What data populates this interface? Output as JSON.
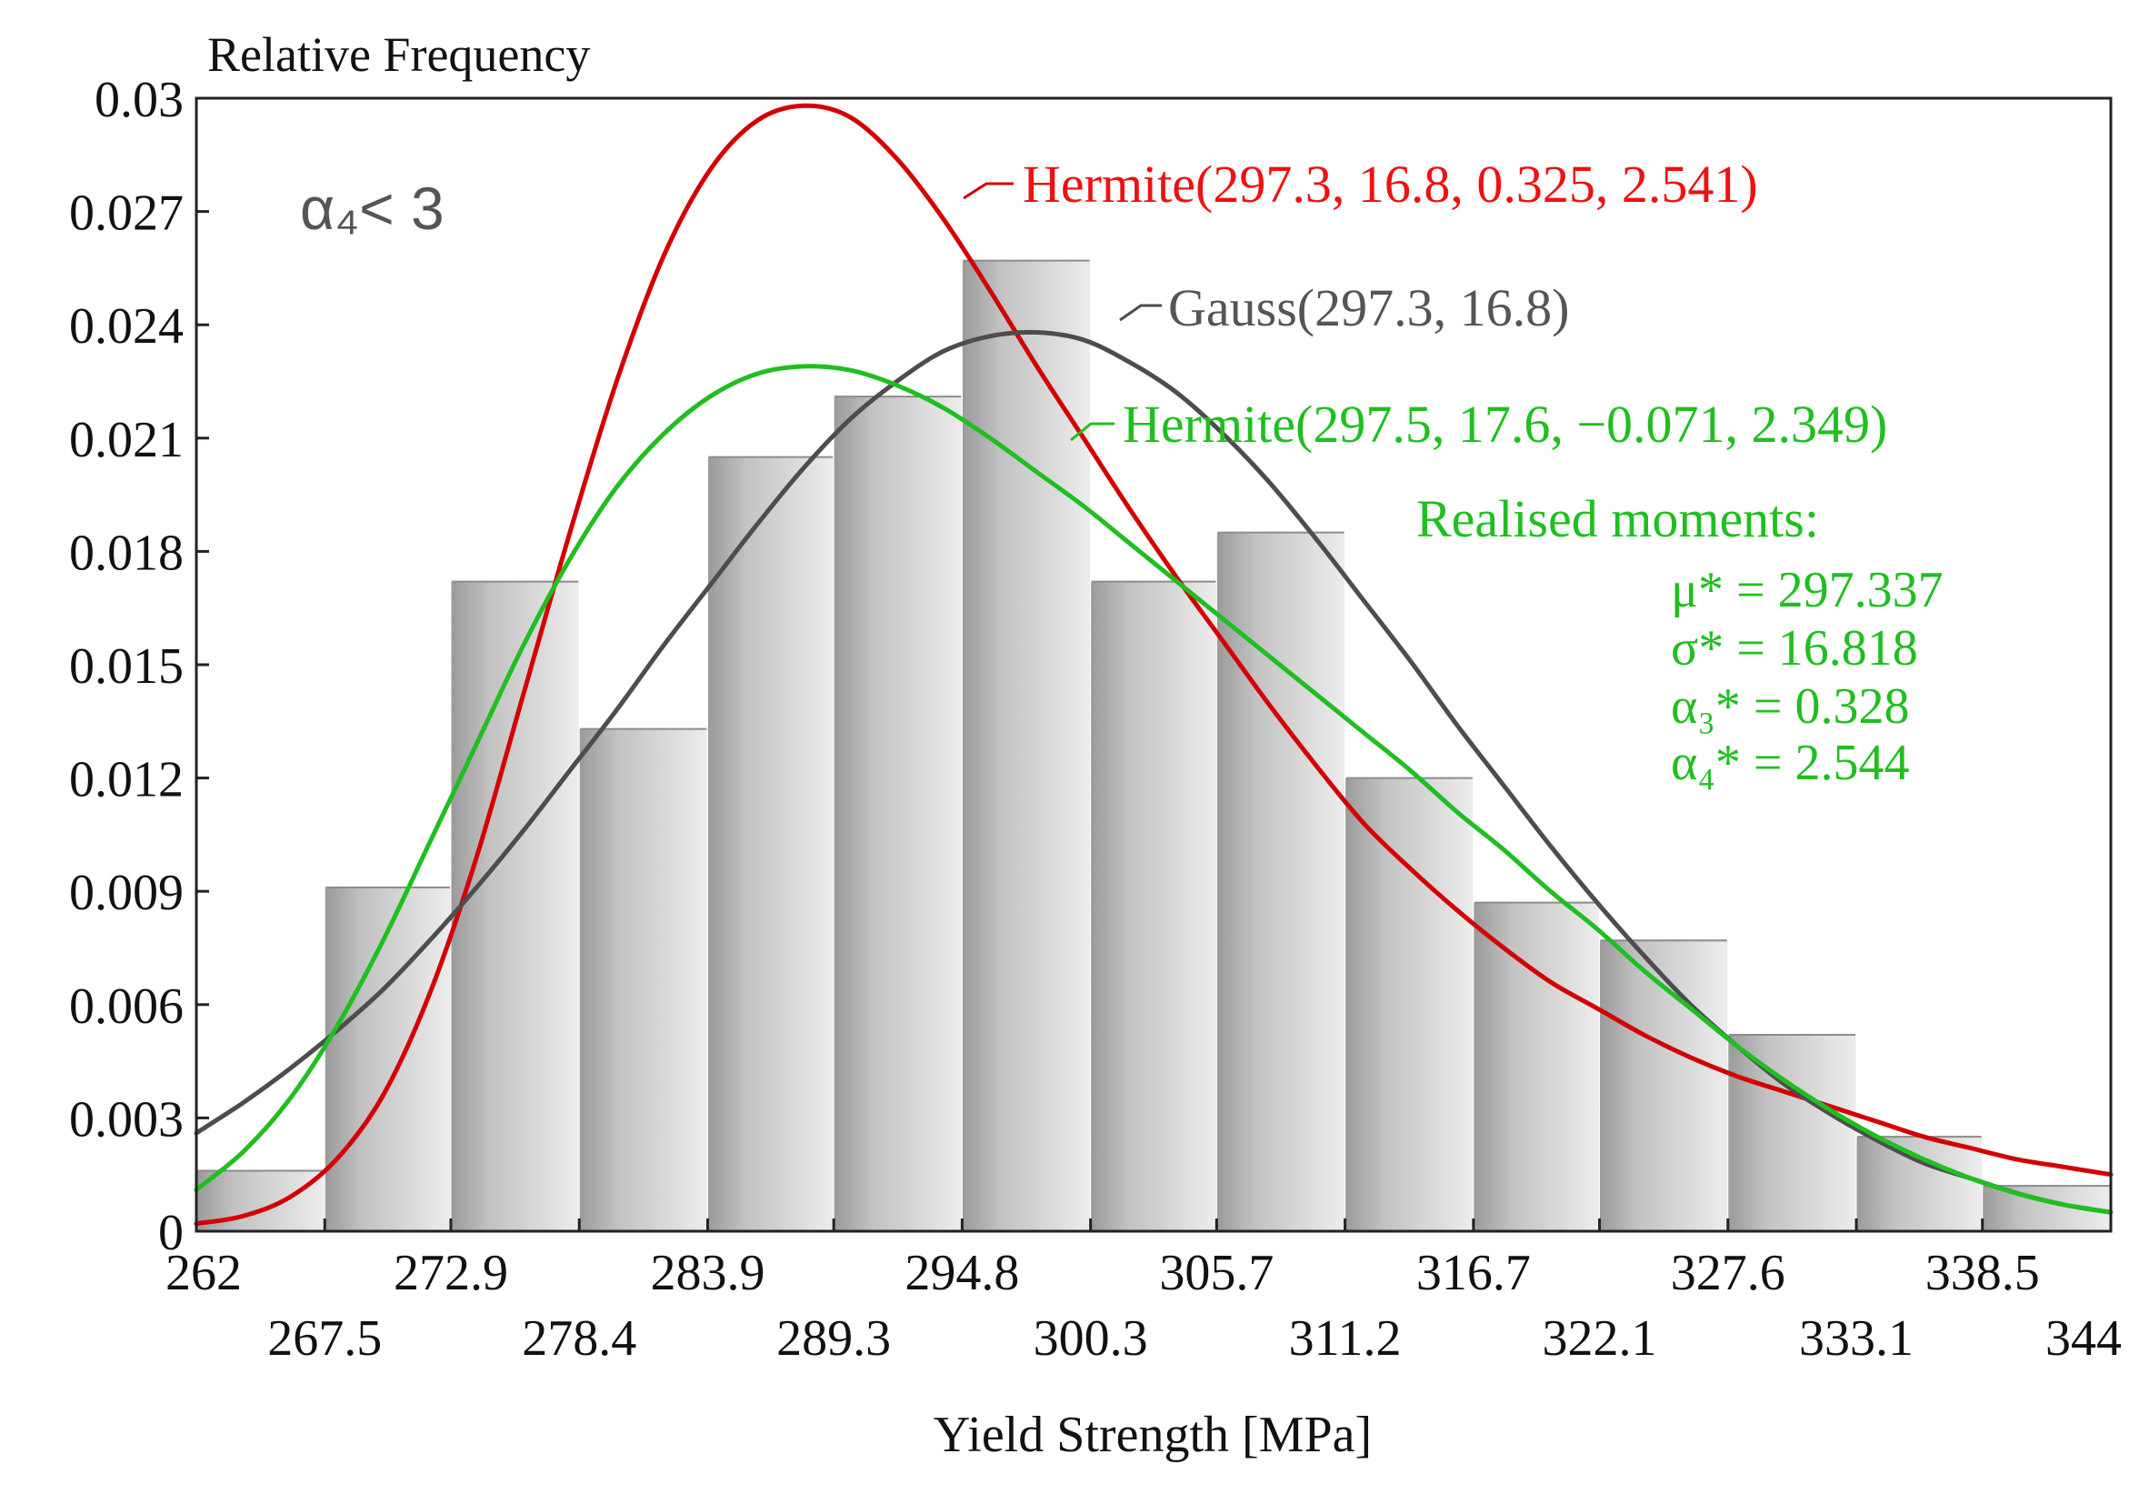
{
  "chart_data": {
    "type": "bar",
    "title": "",
    "ylabel": "Relative Frequency",
    "xlabel": "Yield Strength [MPa]",
    "xlim": [
      262,
      344
    ],
    "ylim": [
      0,
      0.03
    ],
    "yticks": [
      "0",
      "0.003",
      "0.006",
      "0.009",
      "0.012",
      "0.015",
      "0.018",
      "0.021",
      "0.024",
      "0.027",
      "0.03"
    ],
    "xticks_top_row": [
      "262",
      "272.9",
      "283.9",
      "294.8",
      "305.7",
      "316.7",
      "327.6",
      "338.5"
    ],
    "xticks_bottom_row": [
      "267.5",
      "278.4",
      "289.3",
      "300.3",
      "311.2",
      "322.1",
      "333.1",
      "344"
    ],
    "bin_edges": [
      262,
      267.5,
      272.9,
      278.4,
      283.9,
      289.3,
      294.8,
      300.3,
      305.7,
      311.2,
      316.7,
      322.1,
      327.6,
      333.1,
      338.5,
      344
    ],
    "values": [
      0.0016,
      0.0091,
      0.0172,
      0.0133,
      0.0205,
      0.0221,
      0.0257,
      0.0172,
      0.0185,
      0.012,
      0.0087,
      0.0077,
      0.0052,
      0.0025,
      0.0012
    ],
    "bar_colors": {
      "edge": "#9a9a9a",
      "mid": "#c2c2c2",
      "light": "#ededed"
    },
    "series": [
      {
        "name": "Hermite(297.3, 16.8, 0.325, 2.541)",
        "color": "#d40000",
        "x": [
          262,
          264,
          266,
          268,
          270,
          272,
          274,
          276,
          278,
          280,
          282,
          284,
          286,
          288,
          290,
          292,
          294,
          296,
          298,
          300,
          302,
          304,
          306,
          308,
          310,
          312,
          314,
          316,
          318,
          320,
          322,
          324,
          326,
          328,
          330,
          332,
          334,
          336,
          338,
          340,
          342,
          344
        ],
        "y": [
          0.0002,
          0.0004,
          0.0009,
          0.0019,
          0.0036,
          0.0063,
          0.0099,
          0.0142,
          0.0185,
          0.0225,
          0.0258,
          0.0281,
          0.0294,
          0.0298,
          0.0295,
          0.0284,
          0.0268,
          0.0249,
          0.0229,
          0.021,
          0.0191,
          0.0173,
          0.0156,
          0.0139,
          0.0123,
          0.0108,
          0.0096,
          0.0085,
          0.0075,
          0.0066,
          0.0059,
          0.0052,
          0.0046,
          0.0041,
          0.0037,
          0.0033,
          0.0029,
          0.0025,
          0.0022,
          0.0019,
          0.0017,
          0.0015
        ]
      },
      {
        "name": "Gauss(297.3, 16.8)",
        "color": "#4d4d4d",
        "x": [
          262,
          264,
          266,
          268,
          270,
          272,
          274,
          276,
          278,
          280,
          282,
          284,
          286,
          288,
          290,
          292,
          294,
          296,
          298,
          300,
          302,
          304,
          306,
          308,
          310,
          312,
          314,
          316,
          318,
          320,
          322,
          324,
          326,
          328,
          330,
          332,
          334,
          336,
          338,
          340,
          342,
          344
        ],
        "y": [
          0.0026,
          0.0034,
          0.0043,
          0.0053,
          0.0064,
          0.0077,
          0.0091,
          0.0106,
          0.0122,
          0.0138,
          0.0155,
          0.0171,
          0.0187,
          0.0202,
          0.0215,
          0.0225,
          0.0233,
          0.0237,
          0.0238,
          0.0236,
          0.023,
          0.0222,
          0.0211,
          0.0198,
          0.0183,
          0.0167,
          0.0151,
          0.0134,
          0.0118,
          0.0102,
          0.0087,
          0.0073,
          0.006,
          0.0049,
          0.0039,
          0.0031,
          0.0024,
          0.0018,
          0.0014,
          0.001,
          0.0007,
          0.0005
        ]
      },
      {
        "name": "Hermite(297.5, 17.6, −0.071, 2.349)",
        "color": "#1fbf1f",
        "x": [
          262,
          264,
          266,
          268,
          270,
          272,
          274,
          276,
          278,
          280,
          282,
          284,
          286,
          288,
          290,
          292,
          294,
          296,
          298,
          300,
          302,
          304,
          306,
          308,
          310,
          312,
          314,
          316,
          318,
          320,
          322,
          324,
          326,
          328,
          330,
          332,
          334,
          336,
          338,
          340,
          342,
          344
        ],
        "y": [
          0.0011,
          0.0021,
          0.0035,
          0.0054,
          0.0077,
          0.0103,
          0.0129,
          0.0155,
          0.0178,
          0.0197,
          0.0211,
          0.0221,
          0.0227,
          0.0229,
          0.0228,
          0.0224,
          0.0218,
          0.021,
          0.0201,
          0.0192,
          0.0182,
          0.0172,
          0.0162,
          0.0152,
          0.0142,
          0.0132,
          0.0122,
          0.0111,
          0.0101,
          0.009,
          0.008,
          0.0069,
          0.0059,
          0.0049,
          0.004,
          0.0032,
          0.0025,
          0.0019,
          0.0014,
          0.001,
          0.0007,
          0.0005
        ]
      }
    ],
    "annotations": {
      "condition": "α₄< 3",
      "moments_title": "Realised moments:",
      "moments": [
        "μ* = 297.337",
        "σ* = 16.818",
        "α₃* = 0.328",
        "α₄* = 2.544"
      ]
    }
  }
}
